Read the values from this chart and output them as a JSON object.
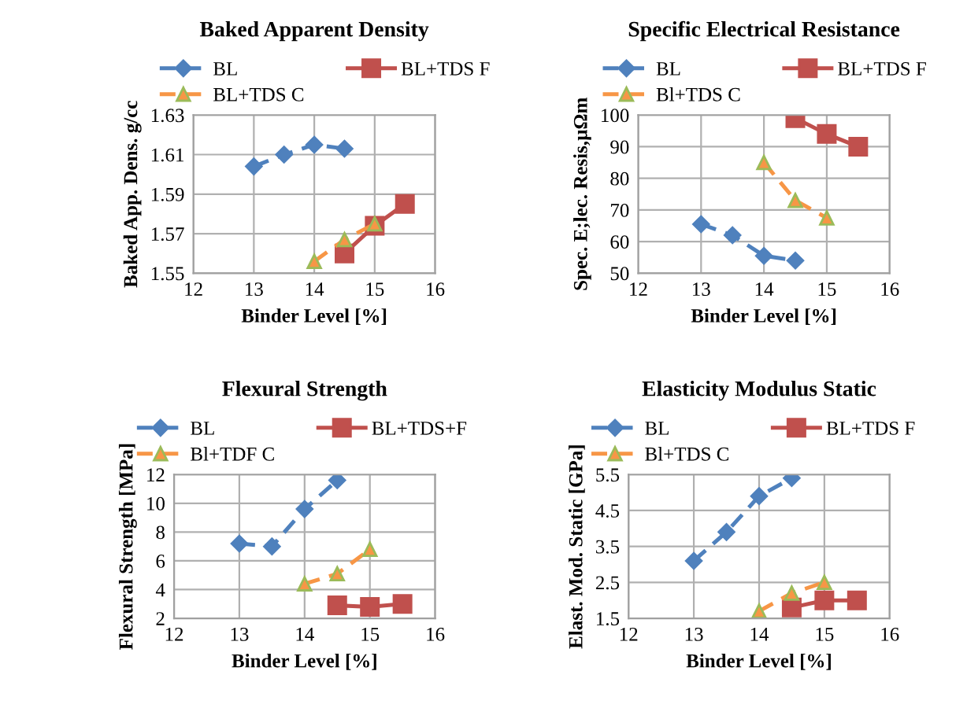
{
  "chart_data": [
    {
      "type": "line",
      "title": "Baked Apparent Density",
      "xlabel": "Binder Level [%]",
      "ylabel": "Baked App. Dens. g/cc",
      "xlim": [
        12,
        16
      ],
      "xticks": [
        12,
        13,
        14,
        15,
        16
      ],
      "ylim": [
        1.55,
        1.63
      ],
      "yticks": [
        {
          "value": 1.55,
          "label": "1.55"
        },
        {
          "value": 1.57,
          "label": "1.57"
        },
        {
          "value": 1.59,
          "label": "1.59"
        },
        {
          "value": 1.61,
          "label": "1.61"
        },
        {
          "value": 1.63,
          "label": "1.63"
        }
      ],
      "grid": true,
      "legend": "top",
      "series": [
        {
          "name": "BL",
          "color": "#4f81bd",
          "marker": "diamond",
          "line_style": "dashed",
          "x": [
            13,
            13.5,
            14,
            14.5
          ],
          "values": [
            1.604,
            1.61,
            1.615,
            1.613
          ]
        },
        {
          "name": "BL+TDS F",
          "color": "#c0504d",
          "marker": "square",
          "line_style": "solid",
          "x": [
            14.5,
            15,
            15.5
          ],
          "values": [
            1.56,
            1.574,
            1.585
          ]
        },
        {
          "name": "BL+TDS C",
          "color": "#f79646",
          "marker": "triangle",
          "line_style": "dashed",
          "x": [
            14,
            14.5,
            15
          ],
          "values": [
            1.556,
            1.567,
            1.575
          ]
        }
      ]
    },
    {
      "type": "line",
      "title": "Specific Electrical Resistance",
      "xlabel": "Binder Level [%]",
      "ylabel": "Spec. E;lec. Resis,µΩm",
      "xlim": [
        12,
        16
      ],
      "xticks": [
        12,
        13,
        14,
        15,
        16
      ],
      "ylim": [
        50,
        100
      ],
      "yticks": [
        50,
        60,
        70,
        80,
        90,
        100
      ],
      "grid": true,
      "legend": "top",
      "series": [
        {
          "name": "BL",
          "color": "#4f81bd",
          "marker": "diamond",
          "line_style": "dashed",
          "x": [
            13,
            13.5,
            14,
            14.5
          ],
          "values": [
            65.5,
            62,
            55.5,
            54
          ]
        },
        {
          "name": "BL+TDS F",
          "color": "#c0504d",
          "marker": "square",
          "line_style": "solid",
          "x": [
            14.5,
            15,
            15.5
          ],
          "values": [
            99,
            94,
            90
          ]
        },
        {
          "name": "Bl+TDS C",
          "color": "#f79646",
          "marker": "triangle",
          "line_style": "dashed",
          "x": [
            14,
            14.5,
            15
          ],
          "values": [
            85,
            73,
            67.5
          ]
        }
      ]
    },
    {
      "type": "line",
      "title": "Flexural Strength",
      "xlabel": "Binder Level [%]",
      "ylabel": "Flexural Strength [MPa]",
      "xlim": [
        12,
        16
      ],
      "xticks": [
        12,
        13,
        14,
        15,
        16
      ],
      "ylim": [
        2,
        12
      ],
      "yticks": [
        2,
        4,
        6,
        8,
        10,
        12
      ],
      "grid": true,
      "legend": "top",
      "series": [
        {
          "name": "BL",
          "color": "#4f81bd",
          "marker": "diamond",
          "line_style": "dashed",
          "x": [
            13,
            13.5,
            14,
            14.5
          ],
          "values": [
            7.2,
            7.0,
            9.6,
            11.6
          ]
        },
        {
          "name": "BL+TDS+F",
          "color": "#c0504d",
          "marker": "square",
          "line_style": "solid",
          "x": [
            14.5,
            15,
            15.5
          ],
          "values": [
            2.9,
            2.8,
            3.0
          ]
        },
        {
          "name": "Bl+TDF C",
          "color": "#f79646",
          "marker": "triangle",
          "line_style": "dashed",
          "x": [
            14,
            14.5,
            15
          ],
          "values": [
            4.4,
            5.1,
            6.8
          ]
        }
      ]
    },
    {
      "type": "line",
      "title": "Elasticity Modulus Static",
      "xlabel": "Binder Level [%]",
      "ylabel": "Elast. Mod. Static [GPa]",
      "xlim": [
        12,
        16
      ],
      "xticks": [
        12,
        13,
        14,
        15,
        16
      ],
      "ylim": [
        1.5,
        5.5
      ],
      "yticks": [
        1.5,
        2.5,
        3.5,
        4.5,
        5.5
      ],
      "grid": true,
      "legend": "top",
      "series": [
        {
          "name": "BL",
          "color": "#4f81bd",
          "marker": "diamond",
          "line_style": "dashed",
          "x": [
            13,
            13.5,
            14,
            14.5
          ],
          "values": [
            3.1,
            3.9,
            4.9,
            5.4
          ]
        },
        {
          "name": "BL+TDS F",
          "color": "#c0504d",
          "marker": "square",
          "line_style": "solid",
          "x": [
            14.5,
            15,
            15.5
          ],
          "values": [
            1.8,
            2.0,
            2.0
          ]
        },
        {
          "name": "Bl+TDS C",
          "color": "#f79646",
          "marker": "triangle",
          "line_style": "dashed",
          "x": [
            14,
            14.5,
            15
          ],
          "values": [
            1.7,
            2.2,
            2.5
          ]
        }
      ]
    }
  ]
}
